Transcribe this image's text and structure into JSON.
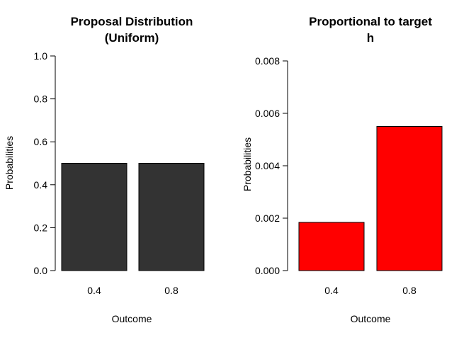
{
  "chart_data": [
    {
      "type": "bar",
      "title_lines": [
        "Proposal Distribution",
        "(Uniform)"
      ],
      "xlabel": "Outcome",
      "ylabel": "Probabilities",
      "categories": [
        "0.4",
        "0.8"
      ],
      "values": [
        0.5,
        0.5
      ],
      "ylim": [
        0,
        1.0
      ],
      "yticks": [
        "0.0",
        "0.2",
        "0.4",
        "0.6",
        "0.8",
        "1.0"
      ],
      "bar_color": "#333333"
    },
    {
      "type": "bar",
      "title_lines": [
        "Proportional to target",
        "h"
      ],
      "xlabel": "Outcome",
      "ylabel": "Probabilities",
      "categories": [
        "0.4",
        "0.8"
      ],
      "values": [
        0.00184,
        0.0055
      ],
      "ylim": [
        0,
        0.008
      ],
      "yticks": [
        "0.000",
        "0.002",
        "0.004",
        "0.006",
        "0.008"
      ],
      "bar_color": "#ff0000"
    }
  ]
}
